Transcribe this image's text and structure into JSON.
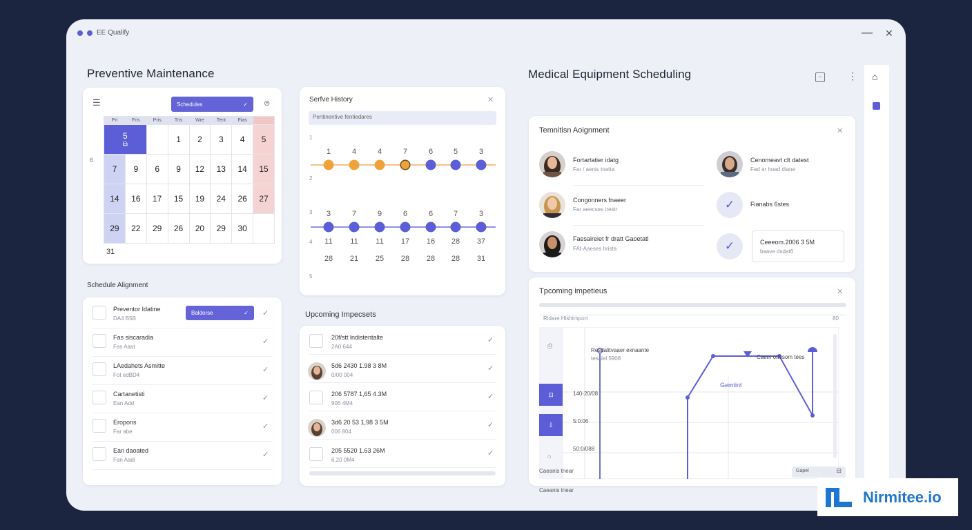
{
  "window": {
    "title": "EE Qualify",
    "minimize": "—",
    "close": "✕"
  },
  "colors": {
    "accent": "#5b5ed6",
    "orange": "#f0a23a",
    "pink": "#f6d3d3",
    "background": "#1b2540"
  },
  "left_panel": {
    "title": "Preventive Maintenance",
    "calendar": {
      "dropdown": "Schedules",
      "weekdays": [
        "Pri",
        "Fris",
        "Pris",
        "Tris",
        "Wre",
        "Tent",
        "Fias"
      ],
      "rows": [
        [
          "",
          "5",
          "",
          "1",
          "2",
          "3",
          "4",
          "5"
        ],
        [
          "7",
          "9",
          "6",
          "9",
          "12",
          "13",
          "14",
          "15"
        ],
        [
          "14",
          "16",
          "17",
          "15",
          "19",
          "24",
          "26",
          "27"
        ],
        [
          "29",
          "22",
          "29",
          "26",
          "20",
          "29",
          "30",
          ""
        ]
      ],
      "row_side_label": "6",
      "after": "31"
    },
    "schedule_title": "Schedule Alignment",
    "schedule_button": "Baldorse",
    "schedule_items": [
      {
        "title": "Preventor Idatine",
        "sub": "DA4 B5B"
      },
      {
        "title": "Fas siscaradia",
        "sub": "Fas Aaat"
      },
      {
        "title": "LAedahets Asmitte",
        "sub": "Fot edBD4"
      },
      {
        "title": "Cartanetisti",
        "sub": "Ean Add"
      },
      {
        "title": "Eropons",
        "sub": "Far abe"
      },
      {
        "title": "Ean daoated",
        "sub": "Fan Aadi"
      }
    ]
  },
  "service_history": {
    "title": "Serfve History",
    "search_value": "Pentinentive fentiedares",
    "row_marks": [
      "1",
      "2",
      "3",
      "4",
      "5"
    ],
    "top_numbers": [
      "1",
      "4",
      "4",
      "7",
      "6",
      "5",
      "3"
    ],
    "mid_numbers": [
      "3",
      "7",
      "9",
      "6",
      "6",
      "7",
      "3"
    ],
    "row_a": [
      "11",
      "11",
      "11",
      "17",
      "16",
      "28",
      "37"
    ],
    "row_b": [
      "28",
      "21",
      "25",
      "28",
      "28",
      "28",
      "31"
    ]
  },
  "upcoming": {
    "title": "Upcoming Impecsets",
    "items": [
      {
        "title": "20f/stt lndistentalte",
        "sub": "2A0 644",
        "avatar": false
      },
      {
        "title": "5d6 2430 1.98 3 8M",
        "sub": "0/00 004",
        "avatar": true
      },
      {
        "title": "206 5787 1,65 4.3M",
        "sub": "906 4M4",
        "avatar": false
      },
      {
        "title": "3d6 20 53 1,98 3 5M",
        "sub": "006 804",
        "avatar": true
      },
      {
        "title": "205 5520 1.63 26M",
        "sub": "6.20 0M4",
        "avatar": false
      }
    ]
  },
  "right_panel": {
    "title": "Medical Equipment Scheduling",
    "tech": {
      "title": "Temnitisn Aoignment",
      "people": [
        {
          "name": "Fortartatier idatg",
          "role": "Far / aenis tnatta"
        },
        {
          "name": "Congonners fnaeer",
          "role": "Far aeecses trestr"
        },
        {
          "name": "Faesaireiet fr dratt Gaoetatl",
          "role": "FAt-Aaeses hrista"
        }
      ],
      "people_right": [
        {
          "name": "Cenomeavt clt datest",
          "role": "Fad ar hoad diane"
        }
      ],
      "status_1": "Fianabs 6stes",
      "status_2_title": "Ceeeom.2006 3 5M",
      "status_2_sub": "baave dsdat6"
    },
    "inspections": {
      "title": "Tpcoming impetieus",
      "chart_caption": "Ridare Hishtmport",
      "chart_count": "80",
      "ann_left_title": "Resdalitvaaer exnaante",
      "ann_left_sub": "tesalel 5908",
      "ann_right": "Caem ottesom tees",
      "series_label": "Gemtint",
      "tick_1": "140-20/08",
      "tick_2": "5:0:06",
      "tick_3": "50:0/088",
      "footer_left": "Caeanis tnear",
      "footer_button": "Gapel"
    }
  },
  "brand": {
    "mark": "IL",
    "name": "Nirmitee.io"
  }
}
